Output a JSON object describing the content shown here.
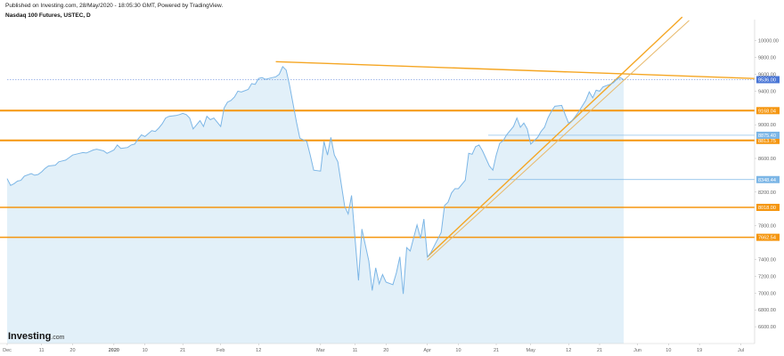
{
  "published": "Published on Investing.com, 28/May/2020 - 18:05:30 GMT, Powered by TradingView.",
  "title": "Nasdaq 100 Futures, USTEC, D",
  "logo": {
    "brand": "Investing",
    "suffix": ".com"
  },
  "colors": {
    "line": "#7cb6e6",
    "area": "#e2f0f9",
    "hline": "#f5960f",
    "trend": "#f5a623",
    "trend_inner": "#e8b96a",
    "last_tag": "#4a76d6"
  },
  "chart_data": {
    "type": "area",
    "title": "Nasdaq 100 Futures, USTEC, D",
    "xlabel": "",
    "ylabel": "",
    "ylim": [
      6400,
      10250
    ],
    "grid": false,
    "y_ticks": [
      "6600.00",
      "6800.00",
      "7000.00",
      "7200.00",
      "7400.00",
      "7600.00",
      "7800.00",
      "8000.00",
      "8200.00",
      "8400.00",
      "8600.00",
      "8800.00",
      "9000.00",
      "9200.00",
      "9400.00",
      "9600.00",
      "9800.00",
      "10000.00"
    ],
    "x_ticks": [
      {
        "label": "Dec",
        "date": "2019-12-01"
      },
      {
        "label": "11",
        "date": "2019-12-11"
      },
      {
        "label": "20",
        "date": "2019-12-20"
      },
      {
        "label": "2020",
        "date": "2020-01-01"
      },
      {
        "label": "10",
        "date": "2020-01-10"
      },
      {
        "label": "21",
        "date": "2020-01-21"
      },
      {
        "label": "Feb",
        "date": "2020-02-01"
      },
      {
        "label": "12",
        "date": "2020-02-12"
      },
      {
        "label": "Mar",
        "date": "2020-03-01"
      },
      {
        "label": "11",
        "date": "2020-03-11"
      },
      {
        "label": "20",
        "date": "2020-03-20"
      },
      {
        "label": "Apr",
        "date": "2020-04-01"
      },
      {
        "label": "10",
        "date": "2020-04-10"
      },
      {
        "label": "21",
        "date": "2020-04-21"
      },
      {
        "label": "May",
        "date": "2020-05-01"
      },
      {
        "label": "12",
        "date": "2020-05-12"
      },
      {
        "label": "21",
        "date": "2020-05-21"
      },
      {
        "label": "Jun",
        "date": "2020-06-01"
      },
      {
        "label": "10",
        "date": "2020-06-10"
      },
      {
        "label": "19",
        "date": "2020-06-19"
      },
      {
        "label": "Jul",
        "date": "2020-07-01"
      }
    ],
    "x_range": [
      "2019-12-01",
      "2020-07-05"
    ],
    "series": [
      {
        "points": [
          [
            "2019-12-01",
            8360
          ],
          [
            "2019-12-02",
            8280
          ],
          [
            "2019-12-03",
            8300
          ],
          [
            "2019-12-04",
            8330
          ],
          [
            "2019-12-05",
            8340
          ],
          [
            "2019-12-06",
            8390
          ],
          [
            "2019-12-08",
            8420
          ],
          [
            "2019-12-09",
            8400
          ],
          [
            "2019-12-10",
            8410
          ],
          [
            "2019-12-11",
            8440
          ],
          [
            "2019-12-12",
            8480
          ],
          [
            "2019-12-13",
            8510
          ],
          [
            "2019-12-15",
            8520
          ],
          [
            "2019-12-16",
            8560
          ],
          [
            "2019-12-17",
            8570
          ],
          [
            "2019-12-18",
            8580
          ],
          [
            "2019-12-19",
            8610
          ],
          [
            "2019-12-20",
            8640
          ],
          [
            "2019-12-22",
            8660
          ],
          [
            "2019-12-23",
            8670
          ],
          [
            "2019-12-24",
            8665
          ],
          [
            "2019-12-26",
            8700
          ],
          [
            "2019-12-27",
            8710
          ],
          [
            "2019-12-29",
            8690
          ],
          [
            "2019-12-30",
            8660
          ],
          [
            "2019-12-31",
            8680
          ],
          [
            "2020-01-01",
            8700
          ],
          [
            "2020-01-02",
            8760
          ],
          [
            "2020-01-03",
            8720
          ],
          [
            "2020-01-05",
            8730
          ],
          [
            "2020-01-06",
            8760
          ],
          [
            "2020-01-07",
            8770
          ],
          [
            "2020-01-08",
            8830
          ],
          [
            "2020-01-09",
            8880
          ],
          [
            "2020-01-10",
            8860
          ],
          [
            "2020-01-12",
            8930
          ],
          [
            "2020-01-13",
            8920
          ],
          [
            "2020-01-14",
            8960
          ],
          [
            "2020-01-15",
            9010
          ],
          [
            "2020-01-16",
            9080
          ],
          [
            "2020-01-17",
            9100
          ],
          [
            "2020-01-19",
            9110
          ],
          [
            "2020-01-20",
            9120
          ],
          [
            "2020-01-21",
            9135
          ],
          [
            "2020-01-22",
            9120
          ],
          [
            "2020-01-23",
            9080
          ],
          [
            "2020-01-24",
            8950
          ],
          [
            "2020-01-26",
            9050
          ],
          [
            "2020-01-27",
            8980
          ],
          [
            "2020-01-28",
            9100
          ],
          [
            "2020-01-29",
            9060
          ],
          [
            "2020-01-30",
            9080
          ],
          [
            "2020-02-01",
            8980
          ],
          [
            "2020-02-02",
            9200
          ],
          [
            "2020-02-03",
            9270
          ],
          [
            "2020-02-04",
            9290
          ],
          [
            "2020-02-05",
            9330
          ],
          [
            "2020-02-06",
            9400
          ],
          [
            "2020-02-07",
            9390
          ],
          [
            "2020-02-09",
            9420
          ],
          [
            "2020-02-10",
            9490
          ],
          [
            "2020-02-11",
            9480
          ],
          [
            "2020-02-12",
            9550
          ],
          [
            "2020-02-13",
            9560
          ],
          [
            "2020-02-14",
            9540
          ],
          [
            "2020-02-16",
            9560
          ],
          [
            "2020-02-17",
            9570
          ],
          [
            "2020-02-18",
            9600
          ],
          [
            "2020-02-19",
            9690
          ],
          [
            "2020-02-20",
            9650
          ],
          [
            "2020-02-21",
            9470
          ],
          [
            "2020-02-23",
            9030
          ],
          [
            "2020-02-24",
            8840
          ],
          [
            "2020-02-26",
            8800
          ],
          [
            "2020-02-27",
            8640
          ],
          [
            "2020-02-28",
            8460
          ],
          [
            "2020-03-01",
            8450
          ],
          [
            "2020-03-02",
            8800
          ],
          [
            "2020-03-03",
            8640
          ],
          [
            "2020-03-04",
            8850
          ],
          [
            "2020-03-05",
            8640
          ],
          [
            "2020-03-06",
            8560
          ],
          [
            "2020-03-08",
            8030
          ],
          [
            "2020-03-09",
            7940
          ],
          [
            "2020-03-10",
            8160
          ],
          [
            "2020-03-11",
            7650
          ],
          [
            "2020-03-12",
            7150
          ],
          [
            "2020-03-13",
            7760
          ],
          [
            "2020-03-15",
            7380
          ],
          [
            "2020-03-16",
            7030
          ],
          [
            "2020-03-17",
            7300
          ],
          [
            "2020-03-18",
            7110
          ],
          [
            "2020-03-19",
            7220
          ],
          [
            "2020-03-20",
            7130
          ],
          [
            "2020-03-22",
            7100
          ],
          [
            "2020-03-23",
            7240
          ],
          [
            "2020-03-24",
            7430
          ],
          [
            "2020-03-25",
            6990
          ],
          [
            "2020-03-26",
            7540
          ],
          [
            "2020-03-27",
            7500
          ],
          [
            "2020-03-29",
            7810
          ],
          [
            "2020-03-30",
            7650
          ],
          [
            "2020-03-31",
            7880
          ],
          [
            "2020-04-01",
            7430
          ],
          [
            "2020-04-02",
            7480
          ],
          [
            "2020-04-03",
            7560
          ],
          [
            "2020-04-05",
            7720
          ],
          [
            "2020-04-06",
            8040
          ],
          [
            "2020-04-07",
            8080
          ],
          [
            "2020-04-08",
            8190
          ],
          [
            "2020-04-09",
            8240
          ],
          [
            "2020-04-10",
            8240
          ],
          [
            "2020-04-12",
            8340
          ],
          [
            "2020-04-13",
            8660
          ],
          [
            "2020-04-14",
            8650
          ],
          [
            "2020-04-15",
            8740
          ],
          [
            "2020-04-16",
            8760
          ],
          [
            "2020-04-17",
            8690
          ],
          [
            "2020-04-19",
            8510
          ],
          [
            "2020-04-20",
            8460
          ],
          [
            "2020-04-21",
            8640
          ],
          [
            "2020-04-22",
            8780
          ],
          [
            "2020-04-23",
            8810
          ],
          [
            "2020-04-24",
            8880
          ],
          [
            "2020-04-26",
            8980
          ],
          [
            "2020-04-27",
            9080
          ],
          [
            "2020-04-28",
            8970
          ],
          [
            "2020-04-29",
            9020
          ],
          [
            "2020-04-30",
            8950
          ],
          [
            "2020-05-01",
            8770
          ],
          [
            "2020-05-03",
            8850
          ],
          [
            "2020-05-04",
            8920
          ],
          [
            "2020-05-05",
            8970
          ],
          [
            "2020-05-06",
            9080
          ],
          [
            "2020-05-07",
            9160
          ],
          [
            "2020-05-08",
            9220
          ],
          [
            "2020-05-10",
            9230
          ],
          [
            "2020-05-11",
            9120
          ],
          [
            "2020-05-12",
            9020
          ],
          [
            "2020-05-13",
            9050
          ],
          [
            "2020-05-14",
            9100
          ],
          [
            "2020-05-15",
            9160
          ],
          [
            "2020-05-17",
            9290
          ],
          [
            "2020-05-18",
            9390
          ],
          [
            "2020-05-19",
            9320
          ],
          [
            "2020-05-20",
            9410
          ],
          [
            "2020-05-21",
            9400
          ],
          [
            "2020-05-22",
            9450
          ],
          [
            "2020-05-24",
            9480
          ],
          [
            "2020-05-25",
            9500
          ],
          [
            "2020-05-26",
            9540
          ],
          [
            "2020-05-27",
            9560
          ],
          [
            "2020-05-28",
            9536
          ]
        ]
      }
    ],
    "horizontal_levels": [
      {
        "value": 9168.04,
        "label": "9168.04",
        "style": "thick"
      },
      {
        "value": 8813.75,
        "label": "8813.75",
        "style": "thick"
      },
      {
        "value": 8018.0,
        "label": "8018.00",
        "style": "medium"
      },
      {
        "value": 7662.54,
        "label": "7662.54",
        "style": "medium"
      },
      {
        "value": 8875.4,
        "label": "8875.40",
        "style": "thin"
      },
      {
        "value": 8348.44,
        "label": "8348.44",
        "style": "thin"
      }
    ],
    "last_price": {
      "value": 9536.0,
      "label": "9536.00"
    },
    "trendlines": [
      {
        "from": [
          "2020-02-17",
          9750
        ],
        "to": [
          "2020-07-05",
          9550
        ],
        "style": "medium"
      },
      {
        "from": [
          "2020-04-01",
          7430
        ],
        "to": [
          "2020-06-14",
          10280
        ],
        "style": "medium"
      },
      {
        "from": [
          "2020-04-01",
          7390
        ],
        "to": [
          "2020-06-16",
          10240
        ],
        "style": "thin"
      }
    ]
  }
}
